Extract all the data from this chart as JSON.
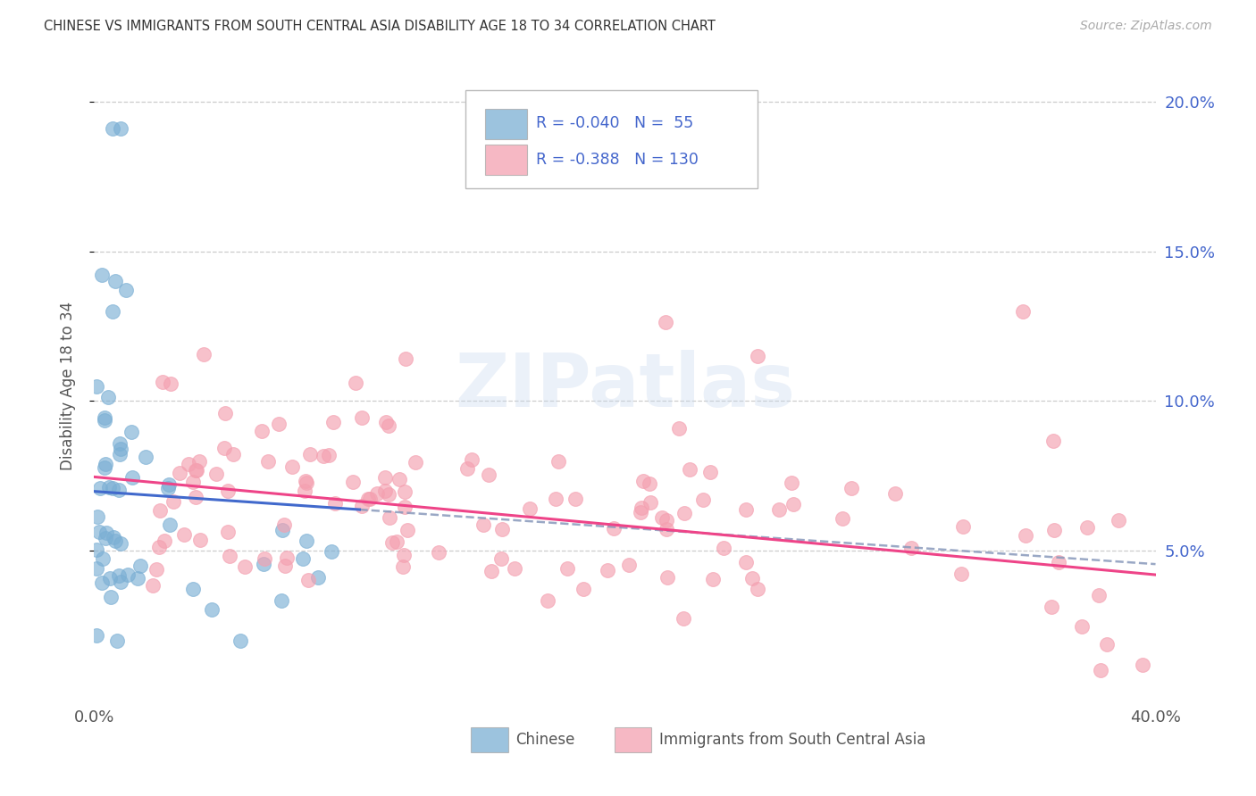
{
  "title": "CHINESE VS IMMIGRANTS FROM SOUTH CENTRAL ASIA DISABILITY AGE 18 TO 34 CORRELATION CHART",
  "source": "Source: ZipAtlas.com",
  "ylabel": "Disability Age 18 to 34",
  "xlim": [
    0.0,
    0.4
  ],
  "ylim": [
    0.0,
    0.21
  ],
  "yticks": [
    0.05,
    0.1,
    0.15,
    0.2
  ],
  "ytick_labels": [
    "5.0%",
    "10.0%",
    "15.0%",
    "20.0%"
  ],
  "xtick_left": "0.0%",
  "xtick_right": "40.0%",
  "legend_r_chinese": "-0.040",
  "legend_n_chinese": "55",
  "legend_r_asian": "-0.388",
  "legend_n_asian": "130",
  "chinese_color": "#7BAFD4",
  "asian_color": "#F4A0B0",
  "trendline_chinese_color": "#4169CC",
  "trendline_asian_color": "#EE4488",
  "grid_color": "#CCCCCC",
  "watermark_color": "#C8D8EE",
  "text_color": "#555555",
  "blue_label_color": "#4466CC",
  "note_chinese_seed": 77,
  "note_asian_seed": 42
}
